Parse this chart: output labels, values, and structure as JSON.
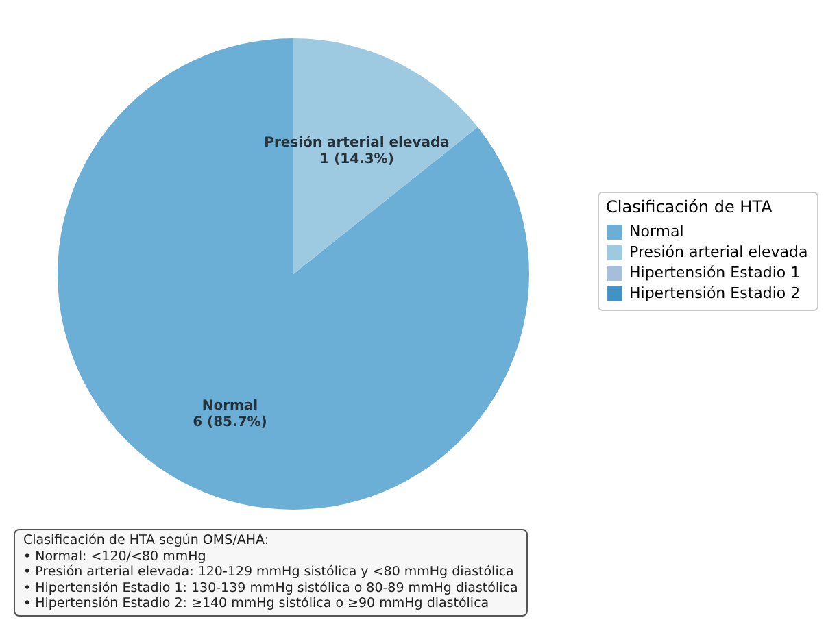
{
  "chart_data": {
    "type": "pie",
    "categories": [
      "Normal",
      "Presión arterial elevada",
      "Hipertensión Estadio 1",
      "Hipertensión Estadio 2"
    ],
    "values": [
      6,
      1,
      0,
      0
    ],
    "colors": [
      "#6baed6",
      "#9ecae1",
      "#a6bddb",
      "#4292c6"
    ],
    "value_labels": [
      "6 (85.7%)",
      "1 (14.3%)",
      null,
      null
    ],
    "legend_title": "Clasificación de HTA",
    "legend": "right",
    "annotations": [
      "Clasificación de HTA según OMS/AHA:\n• Normal: <120/<80 mmHg\n• Presión arterial elevada: 120-129 mmHg sistólica y <80 mmHg diastólica\n• Hipertensión Estadio 1: 130-139 mmHg sistólica o 80-89 mmHg diastólica\n• Hipertensión Estadio 2: ≥140 mmHg sistólica o ≥90 mmHg diastólica"
    ]
  }
}
